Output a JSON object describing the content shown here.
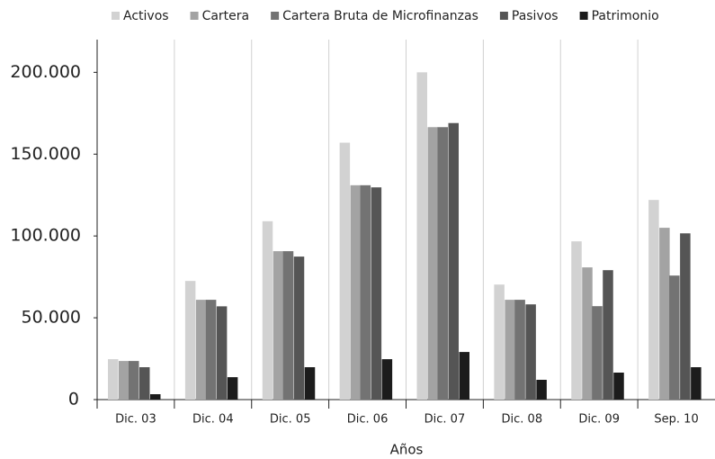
{
  "chart_data": {
    "type": "bar",
    "categories": [
      "Dic. 03",
      "Dic. 04",
      "Dic. 05",
      "Dic. 06",
      "Dic. 07",
      "Dic. 08",
      "Dic. 09",
      "Sep. 10"
    ],
    "series": [
      {
        "name": "Activos",
        "color": "#d2d2d2",
        "values": [
          24700,
          72500,
          109000,
          157000,
          200000,
          70300,
          96700,
          122000
        ]
      },
      {
        "name": "Cartera",
        "color": "#a3a3a3",
        "values": [
          23600,
          61000,
          90700,
          131000,
          166500,
          61000,
          80800,
          105000
        ]
      },
      {
        "name": "Cartera Bruta de Microfinanzas",
        "color": "#737373",
        "values": [
          23600,
          61000,
          90700,
          131000,
          166500,
          61000,
          57100,
          75800
        ]
      },
      {
        "name": "Pasivos",
        "color": "#555555",
        "values": [
          19800,
          57000,
          87400,
          129700,
          169000,
          58200,
          79100,
          101600
        ]
      },
      {
        "name": "Patrimonio",
        "color": "#1c1c1c",
        "values": [
          3300,
          13700,
          19800,
          24700,
          29100,
          12100,
          16500,
          19800
        ]
      }
    ],
    "x_label": "Años",
    "ylim": [
      0,
      220000
    ],
    "yticks": [
      0,
      {
        "value": 50000,
        "label": "50.000"
      },
      {
        "value": 100000,
        "label": "100.000"
      },
      {
        "value": 150000,
        "label": "150.000"
      },
      {
        "value": 200000,
        "label": "200.000"
      }
    ],
    "legend": "top"
  }
}
